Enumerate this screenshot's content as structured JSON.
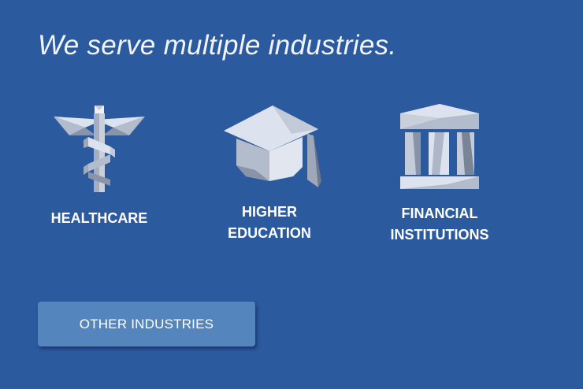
{
  "headline": "We serve multiple industries.",
  "industries": [
    {
      "label": "HEALTHCARE",
      "icon": "caduceus-icon"
    },
    {
      "label": "HIGHER\nEDUCATION",
      "icon": "graduation-cap-icon"
    },
    {
      "label": "FINANCIAL\nINSTITUTIONS",
      "icon": "bank-icon"
    }
  ],
  "button": {
    "label": "OTHER INDUSTRIES"
  },
  "colors": {
    "background": "#2c5a9e",
    "button": "#5486bd",
    "icon_light": "#dde3ee",
    "icon_mid": "#b3bccc",
    "icon_dark": "#8690a3"
  }
}
